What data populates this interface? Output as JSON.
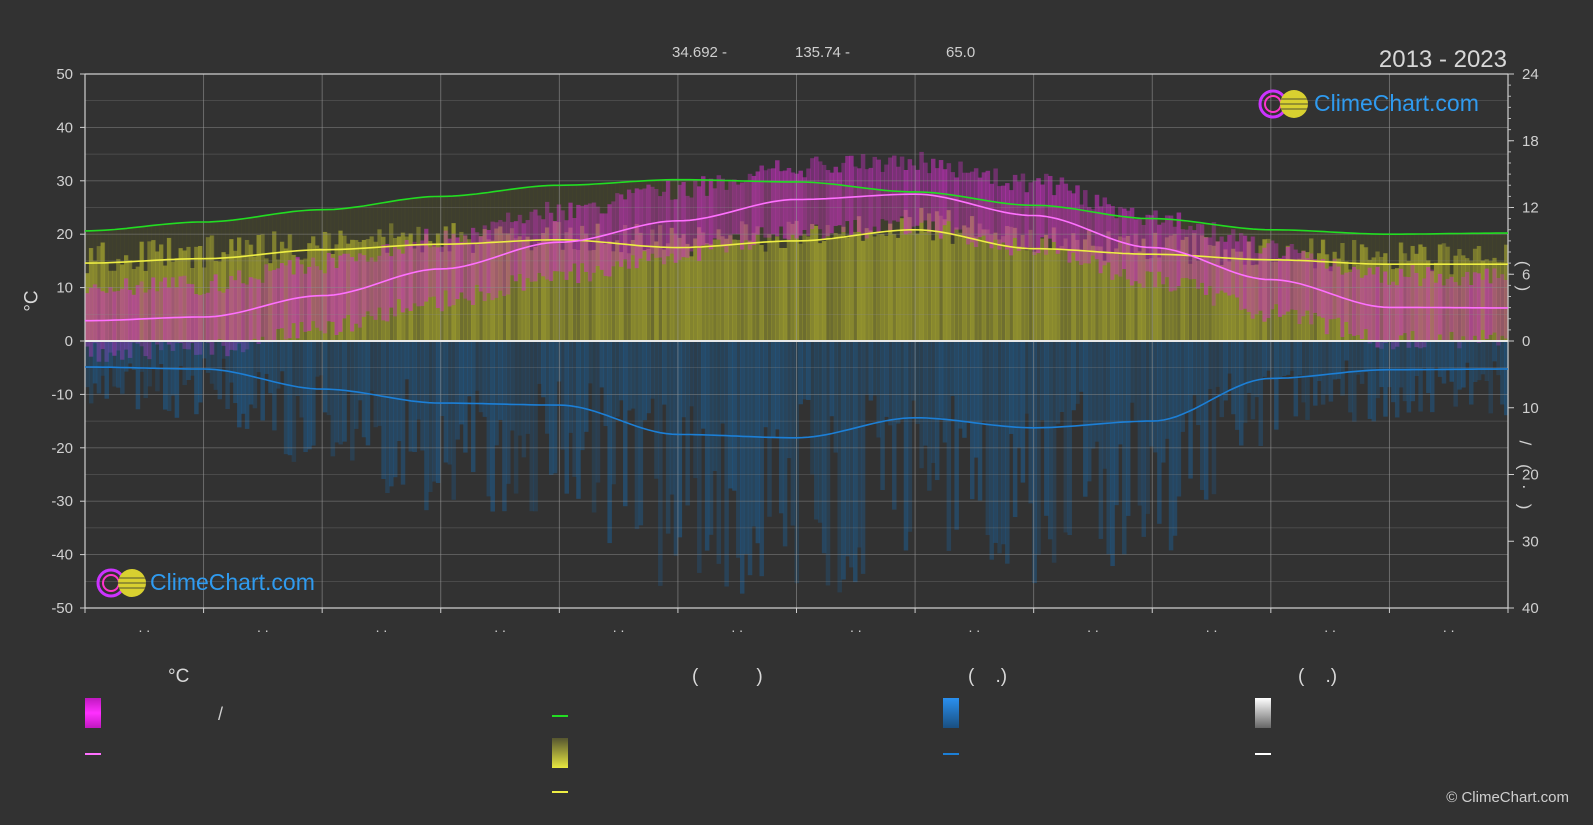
{
  "header": {
    "period": "2013 - 2023",
    "coord_lat": "34.692 -",
    "coord_lon": "135.74 -",
    "elevation": "65.0",
    "copyright": "© ClimeChart.com"
  },
  "logo": {
    "text": "ClimeChart.com"
  },
  "axes": {
    "left_unit": "°C",
    "left_ticks": [
      "50",
      "40",
      "30",
      "20",
      "10",
      "0",
      "-10",
      "-20",
      "-30",
      "-40",
      "-50"
    ],
    "right_top_ticks": [
      "24",
      "18",
      "12",
      "6",
      "0"
    ],
    "right_bottom_ticks": [
      "10",
      "20",
      "30",
      "40"
    ],
    "right_top_title": "(    )",
    "right_bottom_title": "/    (   ·   )",
    "month_ticks": [
      ". .",
      ". .",
      ". .",
      ". .",
      ". .",
      ". .",
      ". .",
      ". .",
      ". .",
      ". .",
      ". .",
      ". ."
    ]
  },
  "legend": {
    "col1_head": "°C",
    "col1_slash": "/",
    "col2_head": "(           )",
    "col3_head": "(    .)",
    "col4_head": "(    .)",
    "colors": {
      "temp_band": "#e020e0",
      "temp_line": "#ff70ff",
      "daylight": "#22dd22",
      "sunshine_band": "#e8e840",
      "sunshine_line": "#eeee44",
      "rain": "#1c7fd6",
      "snow": "#ffffff"
    }
  },
  "chart_data": {
    "type": "line",
    "x_unit": "month",
    "x_range": [
      1,
      13
    ],
    "left_axis": {
      "unit": "°C",
      "ylim": [
        -50,
        50
      ]
    },
    "right_top_axis": {
      "ylim": [
        0,
        24
      ]
    },
    "right_bottom_axis": {
      "ylim": [
        0,
        40
      ],
      "inverted": true
    },
    "series": [
      {
        "name": "temp_mean",
        "axis": "temp",
        "color": "#ff70ff",
        "values": [
          [
            1,
            3.8
          ],
          [
            2,
            4.5
          ],
          [
            3,
            8.5
          ],
          [
            4,
            13.5
          ],
          [
            5,
            18.5
          ],
          [
            6,
            22.5
          ],
          [
            7,
            26.5
          ],
          [
            8,
            27.5
          ],
          [
            9,
            23.5
          ],
          [
            10,
            17.5
          ],
          [
            11,
            11.5
          ],
          [
            12,
            6.3
          ],
          [
            13,
            6.2
          ]
        ]
      },
      {
        "name": "daylight",
        "axis": "hours",
        "color": "#22dd22",
        "values": [
          [
            1,
            9.9
          ],
          [
            2,
            10.7
          ],
          [
            3,
            11.8
          ],
          [
            4,
            13.0
          ],
          [
            5,
            14.0
          ],
          [
            6,
            14.5
          ],
          [
            7,
            14.3
          ],
          [
            8,
            13.4
          ],
          [
            9,
            12.2
          ],
          [
            10,
            11.0
          ],
          [
            11,
            10.0
          ],
          [
            12,
            9.6
          ],
          [
            13,
            9.7
          ]
        ]
      },
      {
        "name": "sunshine",
        "axis": "hours",
        "color": "#eeee44",
        "values": [
          [
            1,
            7.0
          ],
          [
            2,
            7.4
          ],
          [
            3,
            8.2
          ],
          [
            4,
            8.7
          ],
          [
            5,
            9.1
          ],
          [
            6,
            8.4
          ],
          [
            7,
            9.0
          ],
          [
            8,
            10.0
          ],
          [
            9,
            8.3
          ],
          [
            10,
            7.8
          ],
          [
            11,
            7.3
          ],
          [
            12,
            6.9
          ],
          [
            13,
            6.9
          ]
        ]
      },
      {
        "name": "precipitation",
        "axis": "mm",
        "color": "#1c7fd6",
        "values": [
          [
            1,
            3.9
          ],
          [
            2,
            4.2
          ],
          [
            3,
            7.2
          ],
          [
            4,
            9.3
          ],
          [
            5,
            9.6
          ],
          [
            6,
            14.0
          ],
          [
            7,
            14.5
          ],
          [
            8,
            11.5
          ],
          [
            9,
            13.0
          ],
          [
            10,
            12.0
          ],
          [
            11,
            5.6
          ],
          [
            12,
            4.3
          ],
          [
            13,
            4.2
          ]
        ]
      }
    ]
  }
}
